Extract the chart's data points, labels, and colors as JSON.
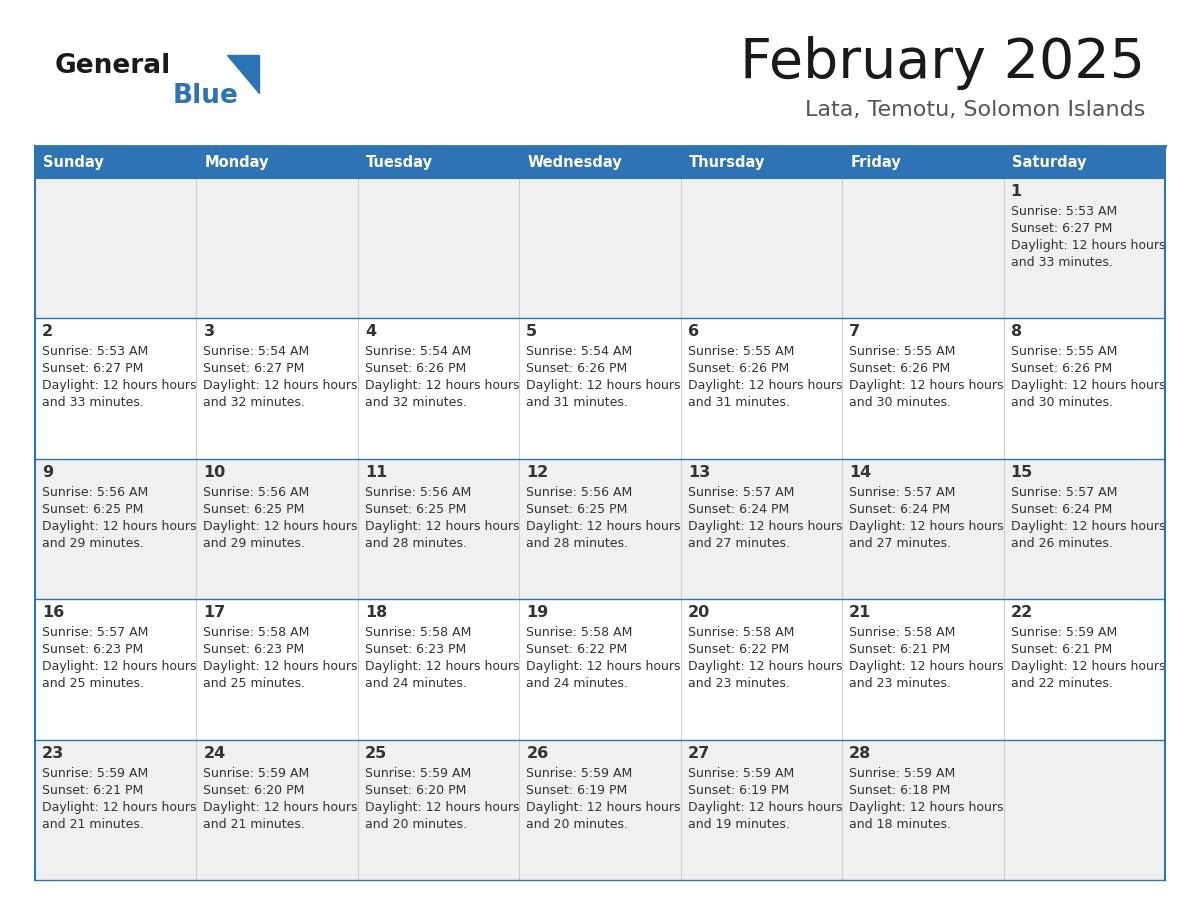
{
  "title": "February 2025",
  "subtitle": "Lata, Temotu, Solomon Islands",
  "header_color": "#2E74B5",
  "header_text_color": "#FFFFFF",
  "background_color": "#FFFFFF",
  "cell_bg_even": "#F0F0F0",
  "cell_bg_odd": "#FFFFFF",
  "days_of_week": [
    "Sunday",
    "Monday",
    "Tuesday",
    "Wednesday",
    "Thursday",
    "Friday",
    "Saturday"
  ],
  "separator_color": "#2E74B5",
  "text_color": "#333333",
  "calendar_data": [
    [
      {
        "day": null,
        "sunrise": null,
        "sunset": null,
        "daylight": null
      },
      {
        "day": null,
        "sunrise": null,
        "sunset": null,
        "daylight": null
      },
      {
        "day": null,
        "sunrise": null,
        "sunset": null,
        "daylight": null
      },
      {
        "day": null,
        "sunrise": null,
        "sunset": null,
        "daylight": null
      },
      {
        "day": null,
        "sunrise": null,
        "sunset": null,
        "daylight": null
      },
      {
        "day": null,
        "sunrise": null,
        "sunset": null,
        "daylight": null
      },
      {
        "day": 1,
        "sunrise": "5:53 AM",
        "sunset": "6:27 PM",
        "daylight": "12 hours and 33 minutes"
      }
    ],
    [
      {
        "day": 2,
        "sunrise": "5:53 AM",
        "sunset": "6:27 PM",
        "daylight": "12 hours and 33 minutes"
      },
      {
        "day": 3,
        "sunrise": "5:54 AM",
        "sunset": "6:27 PM",
        "daylight": "12 hours and 32 minutes"
      },
      {
        "day": 4,
        "sunrise": "5:54 AM",
        "sunset": "6:26 PM",
        "daylight": "12 hours and 32 minutes"
      },
      {
        "day": 5,
        "sunrise": "5:54 AM",
        "sunset": "6:26 PM",
        "daylight": "12 hours and 31 minutes"
      },
      {
        "day": 6,
        "sunrise": "5:55 AM",
        "sunset": "6:26 PM",
        "daylight": "12 hours and 31 minutes"
      },
      {
        "day": 7,
        "sunrise": "5:55 AM",
        "sunset": "6:26 PM",
        "daylight": "12 hours and 30 minutes"
      },
      {
        "day": 8,
        "sunrise": "5:55 AM",
        "sunset": "6:26 PM",
        "daylight": "12 hours and 30 minutes"
      }
    ],
    [
      {
        "day": 9,
        "sunrise": "5:56 AM",
        "sunset": "6:25 PM",
        "daylight": "12 hours and 29 minutes"
      },
      {
        "day": 10,
        "sunrise": "5:56 AM",
        "sunset": "6:25 PM",
        "daylight": "12 hours and 29 minutes"
      },
      {
        "day": 11,
        "sunrise": "5:56 AM",
        "sunset": "6:25 PM",
        "daylight": "12 hours and 28 minutes"
      },
      {
        "day": 12,
        "sunrise": "5:56 AM",
        "sunset": "6:25 PM",
        "daylight": "12 hours and 28 minutes"
      },
      {
        "day": 13,
        "sunrise": "5:57 AM",
        "sunset": "6:24 PM",
        "daylight": "12 hours and 27 minutes"
      },
      {
        "day": 14,
        "sunrise": "5:57 AM",
        "sunset": "6:24 PM",
        "daylight": "12 hours and 27 minutes"
      },
      {
        "day": 15,
        "sunrise": "5:57 AM",
        "sunset": "6:24 PM",
        "daylight": "12 hours and 26 minutes"
      }
    ],
    [
      {
        "day": 16,
        "sunrise": "5:57 AM",
        "sunset": "6:23 PM",
        "daylight": "12 hours and 25 minutes"
      },
      {
        "day": 17,
        "sunrise": "5:58 AM",
        "sunset": "6:23 PM",
        "daylight": "12 hours and 25 minutes"
      },
      {
        "day": 18,
        "sunrise": "5:58 AM",
        "sunset": "6:23 PM",
        "daylight": "12 hours and 24 minutes"
      },
      {
        "day": 19,
        "sunrise": "5:58 AM",
        "sunset": "6:22 PM",
        "daylight": "12 hours and 24 minutes"
      },
      {
        "day": 20,
        "sunrise": "5:58 AM",
        "sunset": "6:22 PM",
        "daylight": "12 hours and 23 minutes"
      },
      {
        "day": 21,
        "sunrise": "5:58 AM",
        "sunset": "6:21 PM",
        "daylight": "12 hours and 23 minutes"
      },
      {
        "day": 22,
        "sunrise": "5:59 AM",
        "sunset": "6:21 PM",
        "daylight": "12 hours and 22 minutes"
      }
    ],
    [
      {
        "day": 23,
        "sunrise": "5:59 AM",
        "sunset": "6:21 PM",
        "daylight": "12 hours and 21 minutes"
      },
      {
        "day": 24,
        "sunrise": "5:59 AM",
        "sunset": "6:20 PM",
        "daylight": "12 hours and 21 minutes"
      },
      {
        "day": 25,
        "sunrise": "5:59 AM",
        "sunset": "6:20 PM",
        "daylight": "12 hours and 20 minutes"
      },
      {
        "day": 26,
        "sunrise": "5:59 AM",
        "sunset": "6:19 PM",
        "daylight": "12 hours and 20 minutes"
      },
      {
        "day": 27,
        "sunrise": "5:59 AM",
        "sunset": "6:19 PM",
        "daylight": "12 hours and 19 minutes"
      },
      {
        "day": 28,
        "sunrise": "5:59 AM",
        "sunset": "6:18 PM",
        "daylight": "12 hours and 18 minutes"
      },
      {
        "day": null,
        "sunrise": null,
        "sunset": null,
        "daylight": null
      }
    ]
  ]
}
